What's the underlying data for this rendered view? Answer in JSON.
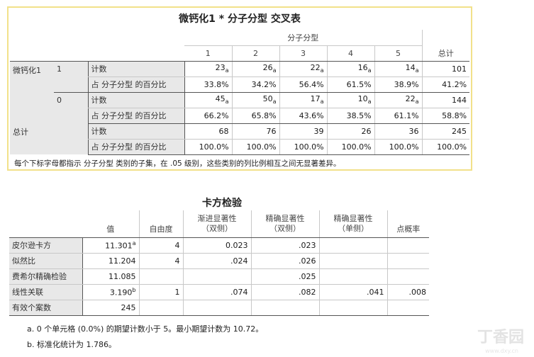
{
  "crosstab": {
    "title": "微钙化1 * 分子分型 交叉表",
    "col_group": "分子分型",
    "cols": [
      "1",
      "2",
      "3",
      "4",
      "5"
    ],
    "total_col": "总计",
    "row_var": "微钙化1",
    "count_label": "计数",
    "pct_label": "占 分子分型 的百分比",
    "groups": [
      {
        "name": "1",
        "counts": [
          "23",
          "26",
          "22",
          "16",
          "14"
        ],
        "sub": [
          "a",
          "a",
          "a",
          "a",
          "a"
        ],
        "count_total": "101",
        "pcts": [
          "33.8%",
          "34.2%",
          "56.4%",
          "61.5%",
          "38.9%"
        ],
        "pct_total": "41.2%"
      },
      {
        "name": "0",
        "counts": [
          "45",
          "50",
          "17",
          "10",
          "22"
        ],
        "sub": [
          "a",
          "a",
          "a",
          "a",
          "a"
        ],
        "count_total": "144",
        "pcts": [
          "66.2%",
          "65.8%",
          "43.6%",
          "38.5%",
          "61.1%"
        ],
        "pct_total": "58.8%"
      }
    ],
    "total_row": {
      "name": "总计",
      "counts": [
        "68",
        "76",
        "39",
        "26",
        "36"
      ],
      "count_total": "245",
      "pcts": [
        "100.0%",
        "100.0%",
        "100.0%",
        "100.0%",
        "100.0%"
      ],
      "pct_total": "100.0%"
    },
    "footnote": "每个下标字母都指示 分子分型 类别的子集，在 .05 级别，这些类别的列比例相互之间无显著差异。"
  },
  "chisq": {
    "title": "卡方检验",
    "headers": [
      "值",
      "自由度",
      "渐进显著性\n（双侧）",
      "精确显著性\n（双侧）",
      "精确显著性\n（单侧）",
      "点概率"
    ],
    "rows": [
      {
        "label": "皮尔逊卡方",
        "value": "11.301",
        "sup": "a",
        "df": "4",
        "asym": "0.023",
        "exact2": ".023",
        "exact1": "",
        "point": ""
      },
      {
        "label": "似然比",
        "value": "11.204",
        "sup": "",
        "df": "4",
        "asym": ".024",
        "exact2": ".026",
        "exact1": "",
        "point": ""
      },
      {
        "label": "费希尔精确检验",
        "value": "11.085",
        "sup": "",
        "df": "",
        "asym": "",
        "exact2": ".025",
        "exact1": "",
        "point": ""
      },
      {
        "label": "线性关联",
        "value": "3.190",
        "sup": "b",
        "df": "1",
        "asym": ".074",
        "exact2": ".082",
        "exact1": ".041",
        "point": ".008"
      },
      {
        "label": "有效个案数",
        "value": "245",
        "sup": "",
        "df": "",
        "asym": "",
        "exact2": "",
        "exact1": "",
        "point": ""
      }
    ],
    "notes": [
      "a. 0 个单元格 (0.0%) 的期望计数小于 5。最小期望计数为 10.72。",
      "b. 标准化统计为 1.786。"
    ]
  },
  "watermark": {
    "main": "丁香园",
    "sub": "www.dxy.cn"
  }
}
